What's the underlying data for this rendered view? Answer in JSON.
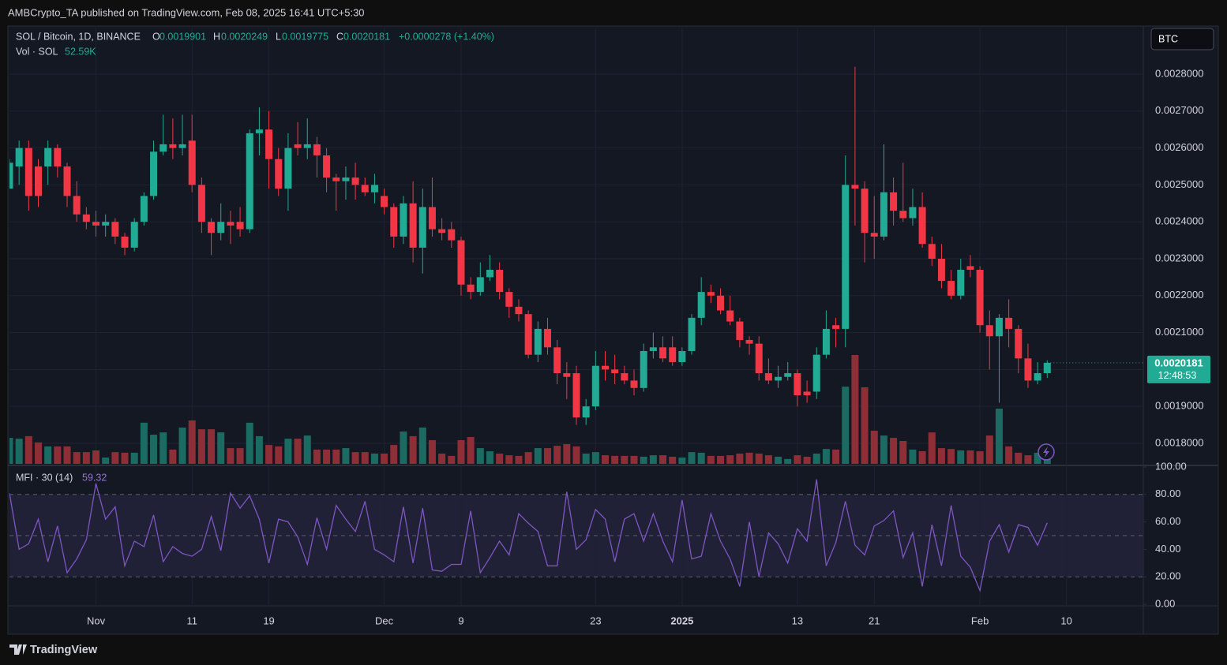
{
  "header": {
    "published": "AMBCrypto_TA published on TradingView.com, Feb 08, 2025 16:41 UTC+5:30"
  },
  "chart_data": {
    "type": "candlestick",
    "title": "SOL / Bitcoin, 1D, BINANCE",
    "legend": {
      "o": "O",
      "h": "H",
      "l": "L",
      "c": "C",
      "change": "+0.0000278 (+1.40%)"
    },
    "currency": "BTC",
    "countdown": "12:48:53",
    "up_color": "#22ab94",
    "down_color": "#f23645",
    "grid": true,
    "open": [
      0.00249,
      0.00255,
      0.0026,
      0.00255,
      0.00255,
      0.0026,
      0.00255,
      0.00247,
      0.00242,
      0.0024,
      0.00239,
      0.0024,
      0.00236,
      0.00233,
      0.0024,
      0.00247,
      0.00259,
      0.00261,
      0.0026,
      0.00262,
      0.0025,
      0.0024,
      0.00237,
      0.0024,
      0.0024,
      0.00238,
      0.00264,
      0.00265,
      0.00257,
      0.00249,
      0.00261,
      0.0026,
      0.00261,
      0.00258,
      0.00252,
      0.00251,
      0.00252,
      0.0025,
      0.00248,
      0.00247,
      0.00244,
      0.00236,
      0.00245,
      0.00233,
      0.00244,
      0.00238,
      0.00238,
      0.00235,
      0.00223,
      0.00221,
      0.00225,
      0.00227,
      0.00221,
      0.00217,
      0.00215,
      0.00204,
      0.00211,
      0.00206,
      0.00199,
      0.00199,
      0.00187,
      0.0019,
      0.00201,
      0.002,
      0.00199,
      0.00197,
      0.00195,
      0.00205,
      0.00206,
      0.00206,
      0.00202,
      0.00205,
      0.00214,
      0.00221,
      0.0022,
      0.00216,
      0.00213,
      0.00208,
      0.00207,
      0.00199,
      0.00197,
      0.00198,
      0.00199,
      0.00194,
      0.00194,
      0.00204,
      0.00212,
      0.00211,
      0.0025,
      0.00249,
      0.00237,
      0.00236,
      0.00248,
      0.00243,
      0.00241,
      0.00244,
      0.00234,
      0.0023,
      0.00224,
      0.0022,
      0.00228,
      0.00227,
      0.00212,
      0.00209,
      0.00214,
      0.00211,
      0.00203,
      0.00197,
      0.0019901
    ],
    "high": [
      0.00257,
      0.00262,
      0.00262,
      0.00257,
      0.00262,
      0.00261,
      0.00256,
      0.00251,
      0.00244,
      0.00243,
      0.00242,
      0.00241,
      0.00237,
      0.00241,
      0.00248,
      0.00262,
      0.00269,
      0.00268,
      0.00269,
      0.00269,
      0.00252,
      0.00241,
      0.00245,
      0.00243,
      0.00244,
      0.00265,
      0.00271,
      0.0027,
      0.0026,
      0.00264,
      0.00267,
      0.00268,
      0.00263,
      0.0026,
      0.00253,
      0.00255,
      0.00256,
      0.00252,
      0.00253,
      0.00249,
      0.00245,
      0.00247,
      0.00251,
      0.00249,
      0.00252,
      0.00241,
      0.0024,
      0.00236,
      0.00225,
      0.00229,
      0.00231,
      0.00229,
      0.00222,
      0.00219,
      0.00216,
      0.00213,
      0.00214,
      0.00208,
      0.00202,
      0.00201,
      0.00192,
      0.00205,
      0.00205,
      0.00204,
      0.00201,
      0.002,
      0.00207,
      0.0021,
      0.00209,
      0.00209,
      0.00206,
      0.00215,
      0.00225,
      0.00223,
      0.00222,
      0.0022,
      0.00214,
      0.00209,
      0.00209,
      0.00203,
      0.00201,
      0.00202,
      0.002,
      0.00197,
      0.00206,
      0.00216,
      0.00214,
      0.00258,
      0.00282,
      0.00251,
      0.00247,
      0.00261,
      0.00252,
      0.00256,
      0.00249,
      0.00248,
      0.00236,
      0.00234,
      0.00227,
      0.0023,
      0.00231,
      0.00228,
      0.00216,
      0.00215,
      0.00219,
      0.00212,
      0.00207,
      0.00202,
      0.0020249
    ],
    "low": [
      0.00249,
      0.0025,
      0.00243,
      0.00244,
      0.0025,
      0.00252,
      0.00244,
      0.0024,
      0.00238,
      0.00236,
      0.00236,
      0.00234,
      0.00231,
      0.00232,
      0.00239,
      0.00246,
      0.00258,
      0.00257,
      0.00258,
      0.00248,
      0.00237,
      0.00231,
      0.00235,
      0.00234,
      0.00236,
      0.00237,
      0.00258,
      0.00249,
      0.00247,
      0.00243,
      0.00258,
      0.00257,
      0.00252,
      0.00248,
      0.00243,
      0.00246,
      0.00246,
      0.00247,
      0.00245,
      0.00242,
      0.00233,
      0.00234,
      0.00229,
      0.00226,
      0.00236,
      0.00235,
      0.00233,
      0.0022,
      0.00219,
      0.0022,
      0.00224,
      0.00219,
      0.00214,
      0.00213,
      0.00203,
      0.00202,
      0.00204,
      0.00196,
      0.00192,
      0.00185,
      0.00185,
      0.00189,
      0.00197,
      0.00196,
      0.00196,
      0.00193,
      0.00194,
      0.00203,
      0.00202,
      0.00201,
      0.00201,
      0.00204,
      0.00212,
      0.00218,
      0.00215,
      0.00212,
      0.00206,
      0.00204,
      0.00197,
      0.00196,
      0.00195,
      0.00197,
      0.0019,
      0.00191,
      0.00192,
      0.00203,
      0.00206,
      0.00206,
      0.00239,
      0.00229,
      0.0023,
      0.00235,
      0.00239,
      0.0024,
      0.00239,
      0.00233,
      0.00228,
      0.00222,
      0.00219,
      0.00219,
      0.00225,
      0.0021,
      0.002,
      0.00191,
      0.00206,
      0.00199,
      0.00195,
      0.00196,
      0.0019775
    ],
    "close": [
      0.00256,
      0.0026,
      0.00247,
      0.00247,
      0.0026,
      0.00255,
      0.00247,
      0.00242,
      0.0024,
      0.00239,
      0.0024,
      0.00236,
      0.00233,
      0.0024,
      0.00247,
      0.00259,
      0.00261,
      0.0026,
      0.00261,
      0.0025,
      0.0024,
      0.00237,
      0.0024,
      0.00239,
      0.00238,
      0.00264,
      0.00265,
      0.00257,
      0.00249,
      0.0026,
      0.0026,
      0.00261,
      0.00258,
      0.00252,
      0.00251,
      0.00252,
      0.0025,
      0.00248,
      0.0025,
      0.00244,
      0.00236,
      0.00245,
      0.00233,
      0.00244,
      0.00238,
      0.00237,
      0.00235,
      0.00223,
      0.00221,
      0.00225,
      0.00227,
      0.00221,
      0.00217,
      0.00215,
      0.00204,
      0.00211,
      0.00206,
      0.00199,
      0.00198,
      0.00187,
      0.0019,
      0.00201,
      0.002,
      0.00199,
      0.00197,
      0.00195,
      0.00205,
      0.00206,
      0.00203,
      0.00202,
      0.00205,
      0.00214,
      0.00221,
      0.0022,
      0.00216,
      0.00213,
      0.00208,
      0.00207,
      0.00199,
      0.00197,
      0.00198,
      0.00199,
      0.00193,
      0.00193,
      0.00204,
      0.00211,
      0.00211,
      0.0025,
      0.00249,
      0.00237,
      0.00236,
      0.00248,
      0.00243,
      0.00241,
      0.00244,
      0.00234,
      0.0023,
      0.00224,
      0.0022,
      0.00227,
      0.00227,
      0.00212,
      0.00209,
      0.00214,
      0.00211,
      0.00203,
      0.00197,
      0.00199,
      0.0020181
    ],
    "xlim": [
      0,
      118
    ],
    "xticks": [
      {
        "value": 9,
        "label": "Nov"
      },
      {
        "value": 19,
        "label": "11"
      },
      {
        "value": 27,
        "label": "19"
      },
      {
        "value": 39,
        "label": "Dec"
      },
      {
        "value": 47,
        "label": "9"
      },
      {
        "value": 61,
        "label": "23"
      },
      {
        "value": 70,
        "label": "2025",
        "bold": true
      },
      {
        "value": 82,
        "label": "13"
      },
      {
        "value": 90,
        "label": "21"
      },
      {
        "value": 101,
        "label": "Feb"
      },
      {
        "value": 110,
        "label": "10"
      }
    ],
    "ylim": [
      0.0017444,
      0.0029261
    ],
    "yticks": [
      {
        "value": 0.0018,
        "label": "0.0018000"
      },
      {
        "value": 0.0019,
        "label": "0.0019000"
      },
      {
        "value": 0.002,
        "label": "0.0020000"
      },
      {
        "value": 0.0021,
        "label": "0.0021000"
      },
      {
        "value": 0.0022,
        "label": "0.0022000"
      },
      {
        "value": 0.0023,
        "label": "0.0023000"
      },
      {
        "value": 0.0024,
        "label": "0.0024000"
      },
      {
        "value": 0.0025,
        "label": "0.0025000"
      },
      {
        "value": 0.0026,
        "label": "0.0026000"
      },
      {
        "value": 0.0027,
        "label": "0.0027000"
      },
      {
        "value": 0.0028,
        "label": "0.0028000"
      }
    ],
    "volume": {
      "title": "Vol · SOL",
      "last_value_label": "52.59K",
      "up_color": "#1c6b62",
      "down_color": "#8e2f37",
      "values": [
        124000,
        120000,
        132000,
        102000,
        83000,
        83000,
        83000,
        56000,
        56000,
        64000,
        30000,
        56000,
        53000,
        53000,
        196000,
        139000,
        150000,
        68000,
        173000,
        207000,
        165000,
        165000,
        150000,
        75000,
        75000,
        196000,
        132000,
        90000,
        83000,
        120000,
        120000,
        135000,
        68000,
        68000,
        68000,
        75000,
        56000,
        56000,
        49000,
        49000,
        90000,
        154000,
        132000,
        173000,
        113000,
        49000,
        38000,
        113000,
        128000,
        75000,
        60000,
        49000,
        41000,
        38000,
        56000,
        75000,
        75000,
        86000,
        94000,
        83000,
        49000,
        56000,
        41000,
        38000,
        38000,
        38000,
        34000,
        41000,
        41000,
        34000,
        30000,
        56000,
        53000,
        38000,
        38000,
        41000,
        49000,
        53000,
        49000,
        41000,
        34000,
        23000,
        41000,
        34000,
        49000,
        71000,
        68000,
        368000,
        519000,
        365000,
        158000,
        135000,
        124000,
        109000,
        68000,
        60000,
        150000,
        75000,
        71000,
        64000,
        64000,
        60000,
        135000,
        263000,
        83000,
        53000,
        41000,
        53000,
        52590
      ]
    },
    "mfi": {
      "title": "MFI · 30 (14)",
      "color": "#7e57c2",
      "ylim": [
        0,
        100
      ],
      "yticks": [
        {
          "value": 0,
          "label": "0.00"
        },
        {
          "value": 20,
          "label": "20.00"
        },
        {
          "value": 40,
          "label": "40.00"
        },
        {
          "value": 60,
          "label": "60.00"
        },
        {
          "value": 80,
          "label": "80.00"
        },
        {
          "value": 100,
          "label": "100.00"
        }
      ],
      "bands": {
        "upper": 80,
        "middle": 50,
        "lower": 20
      },
      "values": [
        81,
        40,
        44,
        62,
        31,
        57,
        23,
        33,
        47,
        88,
        62,
        71,
        28,
        46,
        42,
        65,
        31,
        42,
        37,
        35,
        40,
        64,
        39,
        81,
        70,
        79,
        62,
        30,
        62,
        60,
        49,
        29,
        63,
        40,
        72,
        62,
        53,
        75,
        40,
        36,
        31,
        71,
        30,
        70,
        25,
        24,
        29,
        29,
        68,
        23,
        34,
        46,
        36,
        66,
        59,
        53,
        28,
        28,
        82,
        40,
        47,
        69,
        62,
        31,
        62,
        66,
        46,
        66,
        46,
        31,
        76,
        33,
        35,
        66,
        46,
        33,
        13,
        60,
        20,
        52,
        44,
        30,
        55,
        46,
        91,
        28,
        45,
        75,
        43,
        36,
        57,
        61,
        68,
        34,
        52,
        13,
        58,
        28,
        72,
        35,
        27,
        10,
        46,
        58,
        38,
        58,
        56,
        43,
        59.32
      ]
    }
  },
  "footer": {
    "brand": "TradingView"
  }
}
